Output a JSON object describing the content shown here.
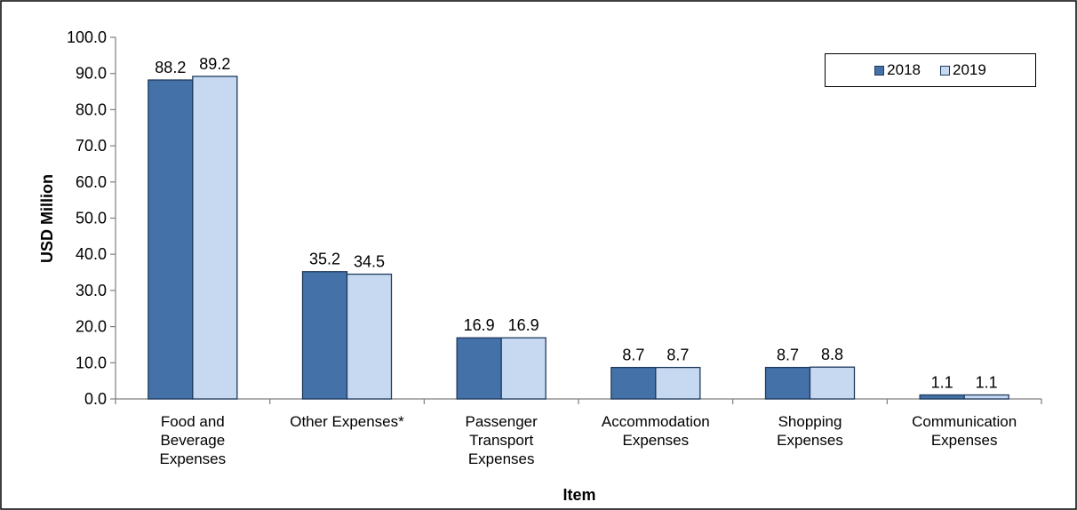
{
  "chart_data": {
    "type": "bar",
    "title": "",
    "xlabel": "Item",
    "ylabel": "USD Million",
    "ylim": [
      0,
      100
    ],
    "ytick_step": 10,
    "ytick_labels": [
      "0.0",
      "10.0",
      "20.0",
      "30.0",
      "40.0",
      "50.0",
      "60.0",
      "70.0",
      "80.0",
      "90.0",
      "100.0"
    ],
    "grid": false,
    "legend_position": "top-right",
    "categories": [
      [
        "Food and",
        "Beverage",
        "Expenses"
      ],
      [
        "Other Expenses*"
      ],
      [
        "Passenger",
        "Transport",
        "Expenses"
      ],
      [
        "Accommodation",
        "Expenses"
      ],
      [
        "Shopping",
        "Expenses"
      ],
      [
        "Communication",
        "Expenses"
      ]
    ],
    "series": [
      {
        "name": "2018",
        "color": "#4472a8",
        "values": [
          88.2,
          35.2,
          16.9,
          8.7,
          8.7,
          1.1
        ],
        "labels": [
          "88.2",
          "35.2",
          "16.9",
          "8.7",
          "8.7",
          "1.1"
        ]
      },
      {
        "name": "2019",
        "color": "#c6d9f1",
        "values": [
          89.2,
          34.5,
          16.9,
          8.7,
          8.8,
          1.1
        ],
        "labels": [
          "89.2",
          "34.5",
          "16.9",
          "8.7",
          "8.8",
          "1.1"
        ]
      }
    ]
  }
}
